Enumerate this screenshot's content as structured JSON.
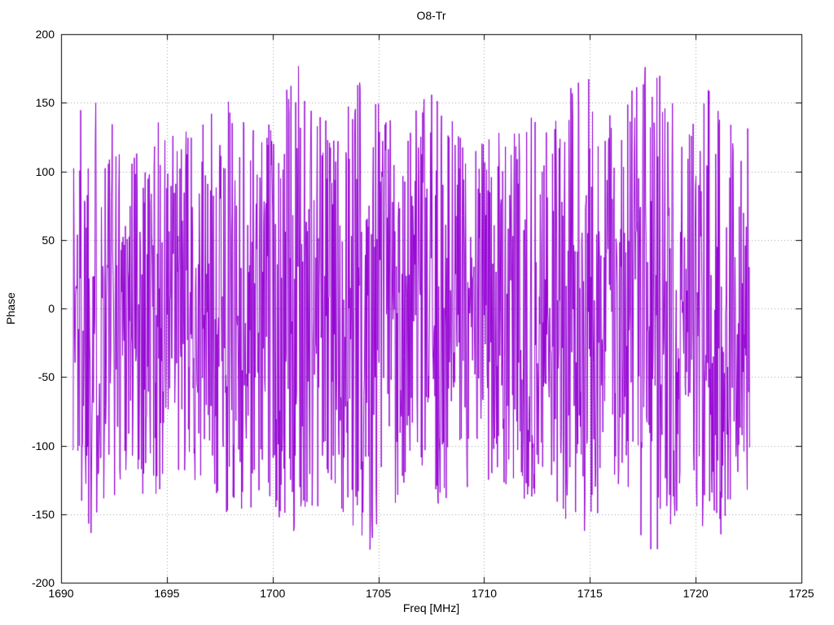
{
  "chart_data": {
    "type": "line",
    "title": "O8-Tr",
    "xlabel": "Freq [MHz]",
    "ylabel": "Phase",
    "xlim": [
      1690,
      1725
    ],
    "ylim": [
      -200,
      200
    ],
    "x_ticks": [
      "1690",
      "1695",
      "1700",
      "1705",
      "1710",
      "1715",
      "1720",
      "1725"
    ],
    "x_tick_values": [
      1690,
      1695,
      1700,
      1705,
      1710,
      1715,
      1720,
      1725
    ],
    "y_ticks": [
      "-200",
      "-150",
      "-100",
      "-50",
      "0",
      "50",
      "100",
      "150",
      "200"
    ],
    "y_tick_values": [
      -200,
      -150,
      -100,
      -50,
      0,
      50,
      100,
      150,
      200
    ],
    "grid": "dotted",
    "legend": "none",
    "line_color": "#9400d3",
    "axis_color": "#000000",
    "grid_color": "#a0a0a0",
    "series": [
      {
        "name": "phase",
        "description": "Wrapped phase noise: dense vertical oscillations spanning approximately -180 to +180 degrees across the whole frequency band",
        "x_start": 1690.55,
        "x_end": 1722.55,
        "n_points": 1440,
        "y_min": -180,
        "y_max": 180,
        "generator": {
          "type": "seeded-uniform",
          "seed": 1337
        }
      }
    ]
  }
}
